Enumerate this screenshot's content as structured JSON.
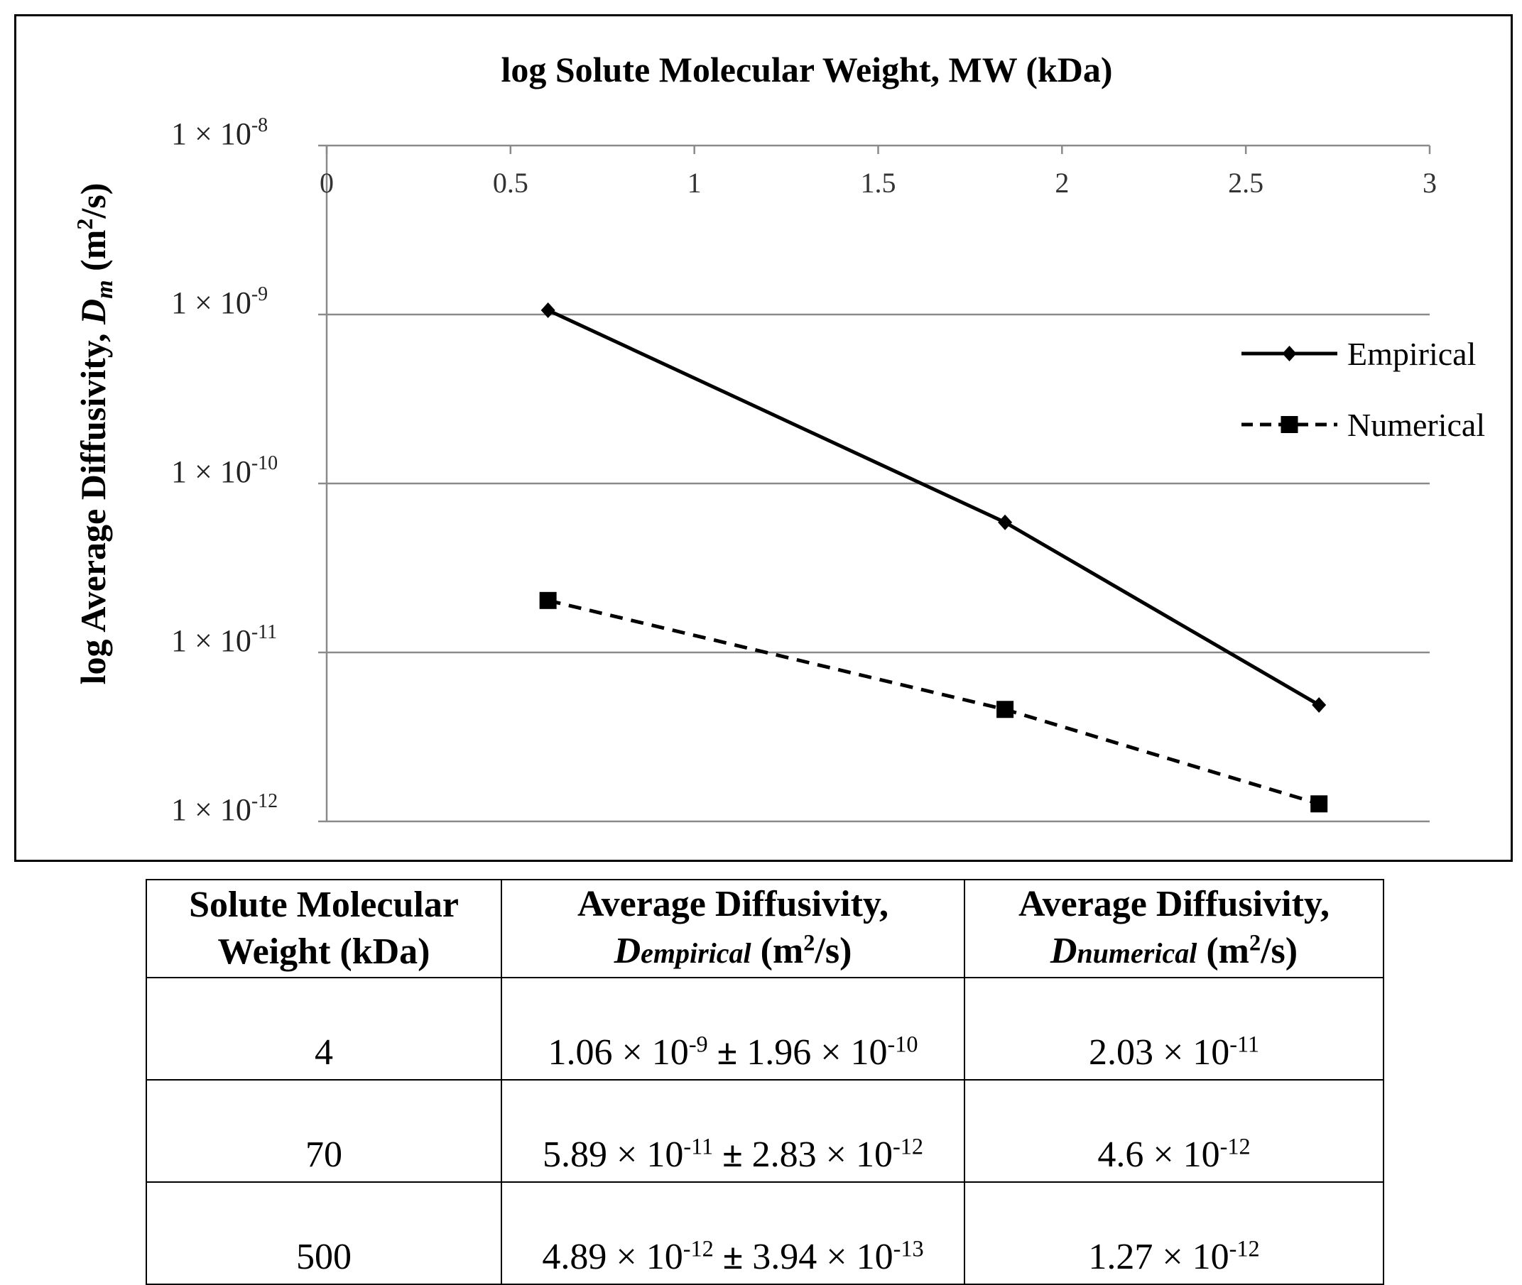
{
  "chart_data": {
    "type": "line",
    "title": "log Solute Molecular Weight, MW (kDa)",
    "xlabel": "log Solute Molecular Weight, MW (kDa)",
    "ylabel": "log Average Diffusivity, Dm (m2/s)",
    "ylabel_parts": {
      "prefix": "log Average Diffusivity, ",
      "var": "D",
      "var_sub": "m",
      "unit_open": " (m",
      "unit_exp": "2",
      "unit_close": "/s)"
    },
    "x_ticks": [
      "0",
      "0.5",
      "1",
      "1.5",
      "2",
      "2.5",
      "3"
    ],
    "x_tick_values": [
      0,
      0.5,
      1,
      1.5,
      2,
      2.5,
      3
    ],
    "xlim": [
      0,
      3
    ],
    "y_scale": "log",
    "ylim": [
      1e-12,
      1e-08
    ],
    "y_ticks": [
      {
        "value": 1e-08,
        "base": "1 × 10",
        "exp": "-8"
      },
      {
        "value": 1e-09,
        "base": "1 × 10",
        "exp": "-9"
      },
      {
        "value": 1e-10,
        "base": "1 × 10",
        "exp": "-10"
      },
      {
        "value": 1e-11,
        "base": "1 × 10",
        "exp": "-11"
      },
      {
        "value": 1e-12,
        "base": "1 × 10",
        "exp": "-12"
      }
    ],
    "series": [
      {
        "name": "Empirical",
        "style": "solid",
        "marker": "diamond",
        "x": [
          0.602,
          1.845,
          2.699
        ],
        "y": [
          1.06e-09,
          5.89e-11,
          4.89e-12
        ]
      },
      {
        "name": "Numerical",
        "style": "dashed",
        "marker": "square",
        "x": [
          0.602,
          1.845,
          2.699
        ],
        "y": [
          2.03e-11,
          4.6e-12,
          1.27e-12
        ]
      }
    ],
    "legend": "right",
    "grid": true
  },
  "table": {
    "headers": [
      {
        "line1": "Solute Molecular",
        "line2": "Weight (kDa)"
      },
      {
        "line1": "Average Diffusivity,",
        "var": "D",
        "sub": "empirical",
        "unit_open": " (m",
        "unit_exp": "2",
        "unit_close": "/s)"
      },
      {
        "line1": "Average Diffusivity,",
        "var": "D",
        "sub": "numerical",
        "unit_open": " (m",
        "unit_exp": "2",
        "unit_close": "/s)"
      }
    ],
    "rows": [
      {
        "mw": "4",
        "emp": {
          "m": "1.06 × 10",
          "me": "-9",
          "pm": " ± ",
          "e": "1.96 × 10",
          "ee": "-10"
        },
        "num": {
          "m": "2.03 × 10",
          "me": "-11"
        }
      },
      {
        "mw": "70",
        "emp": {
          "m": "5.89 × 10",
          "me": "-11",
          "pm": " ± ",
          "e": "2.83 × 10",
          "ee": "-12"
        },
        "num": {
          "m": "4.6 × 10",
          "me": "-12"
        }
      },
      {
        "mw": "500",
        "emp": {
          "m": "4.89 × 10",
          "me": "-12",
          "pm": " ± ",
          "e": "3.94 × 10",
          "ee": "-13"
        },
        "num": {
          "m": "1.27 × 10",
          "me": "-12"
        }
      }
    ]
  }
}
